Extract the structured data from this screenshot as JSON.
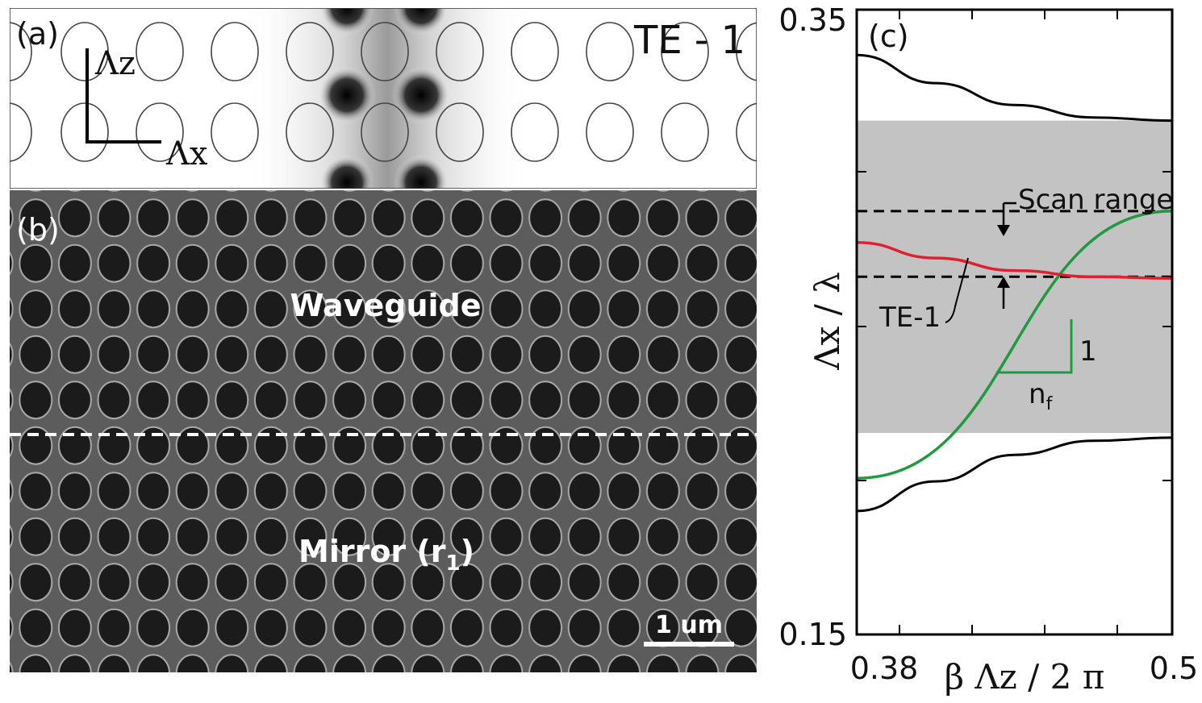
{
  "panel_a": {
    "label": "(a)",
    "mode_label": "TE - 1",
    "axis_z": "Λz",
    "axis_x": "Λx"
  },
  "panel_b": {
    "label": "(b)",
    "waveguide_label": "Waveguide",
    "mirror_label": "Mirror (r",
    "mirror_sub": "1",
    "mirror_close": ")",
    "scale_label": "1 um"
  },
  "panel_c": {
    "label": "(c)",
    "y_tick_top": "0.35",
    "y_tick_bottom": "0.15",
    "x_tick_left": "0.38",
    "x_tick_right": "0.5",
    "y_label": "Λx / λ",
    "x_label": "β Λz / 2 π",
    "scan_range_label": "Scan range",
    "te1_label": "TE-1",
    "slope_rise": "1",
    "slope_run": "nf"
  },
  "chart_data": {
    "type": "line",
    "title": "",
    "xlabel": "β Λz / 2π",
    "ylabel": "Λx / λ",
    "xlim": [
      0.38,
      0.5
    ],
    "ylim": [
      0.15,
      0.35
    ],
    "series": [
      {
        "name": "Upper band edge",
        "x": [
          0.38,
          0.41,
          0.44,
          0.47,
          0.5
        ],
        "y": [
          0.3355,
          0.3265,
          0.3195,
          0.3155,
          0.3145
        ]
      },
      {
        "name": "Lower band edge",
        "x": [
          0.38,
          0.41,
          0.44,
          0.47,
          0.5
        ],
        "y": [
          0.1895,
          0.199,
          0.2075,
          0.212,
          0.213
        ]
      },
      {
        "name": "TE-1",
        "x": [
          0.38,
          0.41,
          0.44,
          0.47,
          0.5
        ],
        "y": [
          0.2755,
          0.2705,
          0.2665,
          0.2645,
          0.264
        ]
      },
      {
        "name": "Light line",
        "x": [
          0.38,
          0.5
        ],
        "y": [
          0.2,
          0.2855
        ]
      },
      {
        "name": "Scan range upper",
        "x": [
          0.38,
          0.5
        ],
        "y": [
          0.2855,
          0.2855
        ]
      },
      {
        "name": "Scan range lower",
        "x": [
          0.38,
          0.5
        ],
        "y": [
          0.2645,
          0.2645
        ]
      }
    ],
    "bandgap_range": [
      0.2145,
      0.3145
    ]
  }
}
